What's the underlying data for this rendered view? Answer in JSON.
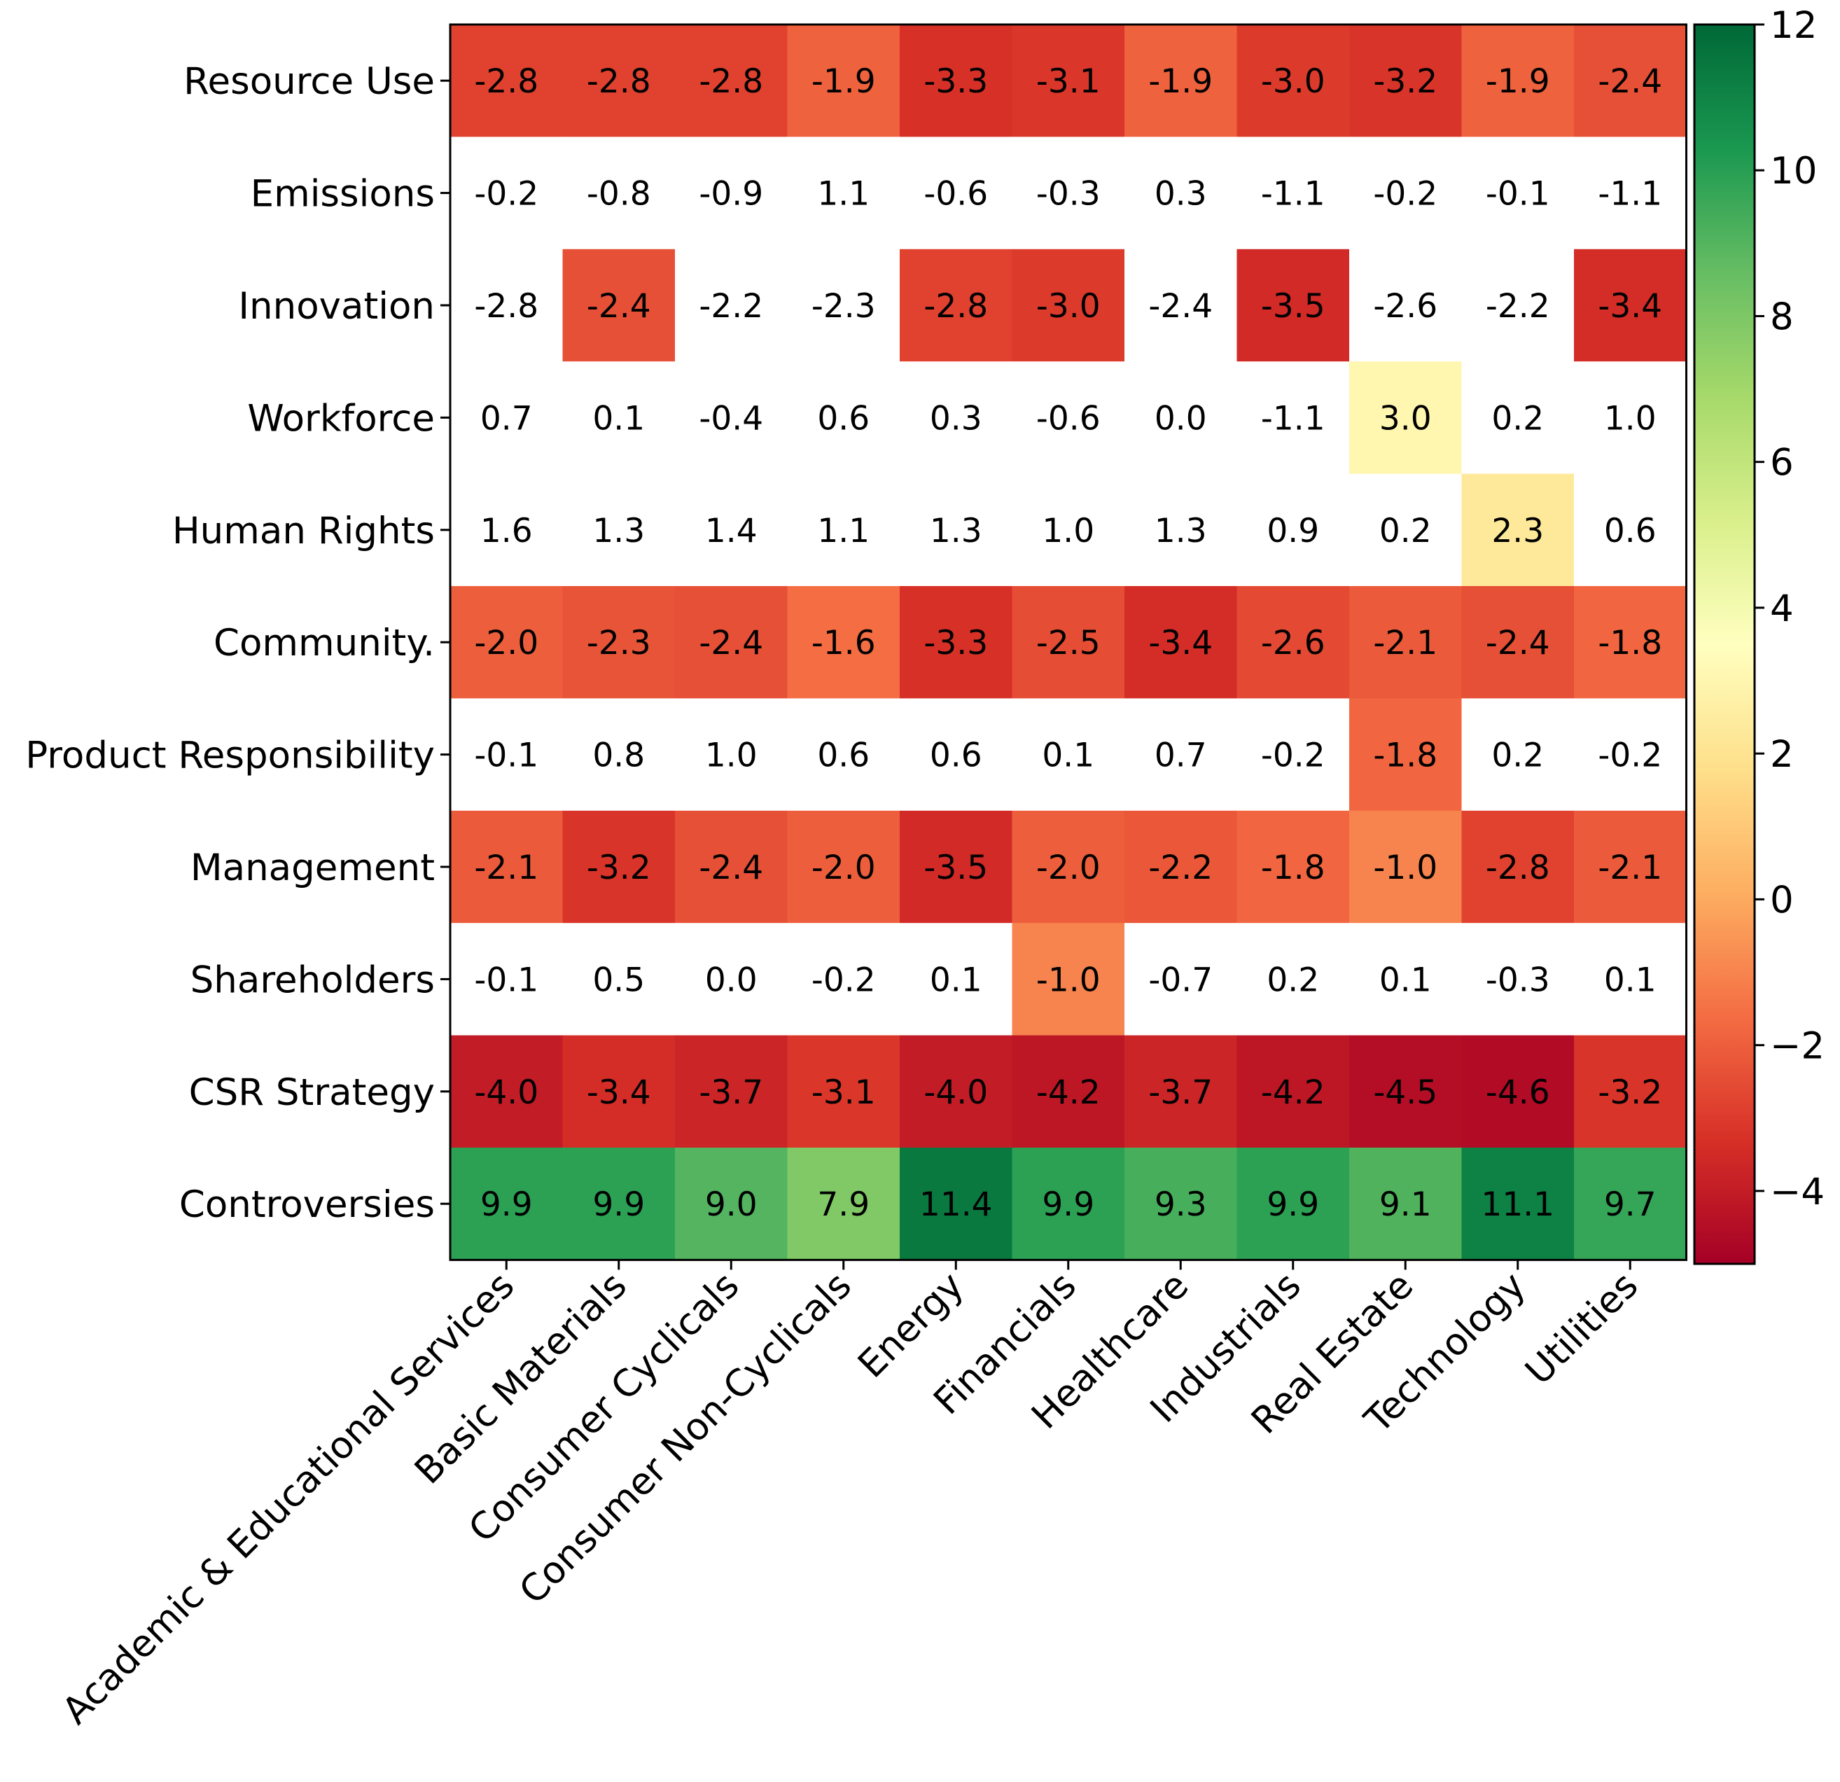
{
  "chart_data": {
    "type": "heatmap",
    "title": "",
    "xlabel": "",
    "ylabel": "",
    "rows": [
      "Resource Use",
      "Emissions",
      "Innovation",
      "Workforce",
      "Human Rights",
      "Community.",
      "Product Responsibility",
      "Management",
      "Shareholders",
      "CSR Strategy",
      "Controversies"
    ],
    "columns": [
      "Academic & Educational Services",
      "Basic Materials",
      "Consumer Cyclicals",
      "Consumer Non-Cyclicals",
      "Energy",
      "Financials",
      "Healthcare",
      "Industrials",
      "Real Estate",
      "Technology",
      "Utilities"
    ],
    "values": [
      [
        -2.8,
        -2.8,
        -2.8,
        -1.9,
        -3.3,
        -3.1,
        -1.9,
        -3.0,
        -3.2,
        -1.9,
        -2.4
      ],
      [
        -0.2,
        -0.8,
        -0.9,
        1.1,
        -0.6,
        -0.3,
        0.3,
        -1.1,
        -0.2,
        -0.1,
        -1.1
      ],
      [
        -2.8,
        -2.4,
        -2.2,
        -2.3,
        -2.8,
        -3.0,
        -2.4,
        -3.5,
        -2.6,
        -2.2,
        -3.4
      ],
      [
        0.7,
        0.1,
        -0.4,
        0.6,
        0.3,
        -0.6,
        0.0,
        -1.1,
        3.0,
        0.2,
        1.0
      ],
      [
        1.6,
        1.3,
        1.4,
        1.1,
        1.3,
        1.0,
        1.3,
        0.9,
        0.2,
        2.3,
        0.6
      ],
      [
        -2.0,
        -2.3,
        -2.4,
        -1.6,
        -3.3,
        -2.5,
        -3.4,
        -2.6,
        -2.1,
        -2.4,
        -1.8
      ],
      [
        -0.1,
        0.8,
        1.0,
        0.6,
        0.6,
        0.1,
        0.7,
        -0.2,
        -1.8,
        0.2,
        -0.2
      ],
      [
        -2.1,
        -3.2,
        -2.4,
        -2.0,
        -3.5,
        -2.0,
        -2.2,
        -1.8,
        -1.0,
        -2.8,
        -2.1
      ],
      [
        -0.1,
        0.5,
        0.0,
        -0.2,
        0.1,
        -1.0,
        -0.7,
        0.2,
        0.1,
        -0.3,
        0.1
      ],
      [
        -4.0,
        -3.4,
        -3.7,
        -3.1,
        -4.0,
        -4.2,
        -3.7,
        -4.2,
        -4.5,
        -4.6,
        -3.2
      ],
      [
        9.9,
        9.9,
        9.0,
        7.9,
        11.4,
        9.9,
        9.3,
        9.9,
        9.1,
        11.1,
        9.7
      ]
    ],
    "shaded": [
      [
        1,
        1,
        1,
        1,
        1,
        1,
        1,
        1,
        1,
        1,
        1
      ],
      [
        0,
        0,
        0,
        0,
        0,
        0,
        0,
        0,
        0,
        0,
        0
      ],
      [
        0,
        1,
        0,
        0,
        1,
        1,
        0,
        1,
        0,
        0,
        1
      ],
      [
        0,
        0,
        0,
        0,
        0,
        0,
        0,
        0,
        1,
        0,
        0
      ],
      [
        0,
        0,
        0,
        0,
        0,
        0,
        0,
        0,
        0,
        1,
        0
      ],
      [
        1,
        1,
        1,
        1,
        1,
        1,
        1,
        1,
        1,
        1,
        1
      ],
      [
        0,
        0,
        0,
        0,
        0,
        0,
        0,
        0,
        1,
        0,
        0
      ],
      [
        1,
        1,
        1,
        1,
        1,
        1,
        1,
        1,
        1,
        1,
        1
      ],
      [
        0,
        0,
        0,
        0,
        0,
        1,
        0,
        0,
        0,
        0,
        0
      ],
      [
        1,
        1,
        1,
        1,
        1,
        1,
        1,
        1,
        1,
        1,
        1
      ],
      [
        1,
        1,
        1,
        1,
        1,
        1,
        1,
        1,
        1,
        1,
        1
      ]
    ],
    "colorbar": {
      "vmin": -5,
      "vmax": 12,
      "ticks": [
        12,
        10,
        8,
        6,
        4,
        2,
        0,
        -2,
        -4
      ],
      "tick_labels": [
        "12",
        "10",
        "8",
        "6",
        "4",
        "2",
        "0",
        "−2",
        "−4"
      ],
      "colormap": "RdYlGn",
      "stops": [
        "#a50026",
        "#d73027",
        "#f46d43",
        "#fdae61",
        "#fee08b",
        "#ffffbf",
        "#d9ef8b",
        "#a6d96a",
        "#66bd63",
        "#1a9850",
        "#006837"
      ]
    }
  }
}
